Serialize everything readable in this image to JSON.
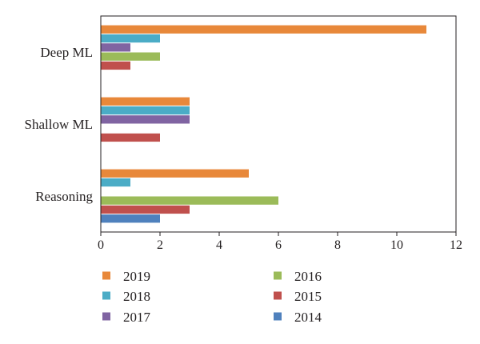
{
  "chart_data": {
    "type": "bar",
    "orientation": "horizontal",
    "categories": [
      "Deep ML",
      "Shallow ML",
      "Reasoning"
    ],
    "series": [
      {
        "name": "2019",
        "color": "#e8883a",
        "values": [
          11,
          3,
          5
        ]
      },
      {
        "name": "2018",
        "color": "#4bacc6",
        "values": [
          2,
          3,
          1
        ]
      },
      {
        "name": "2017",
        "color": "#8064a2",
        "values": [
          1,
          3,
          0
        ]
      },
      {
        "name": "2016",
        "color": "#9bbb59",
        "values": [
          2,
          0,
          6
        ]
      },
      {
        "name": "2015",
        "color": "#c0504d",
        "values": [
          1,
          2,
          3
        ]
      },
      {
        "name": "2014",
        "color": "#4f81bd",
        "values": [
          0,
          0,
          2
        ]
      }
    ],
    "xlim": [
      0,
      12
    ],
    "xticks": [
      "0",
      "2",
      "4",
      "6",
      "8",
      "10",
      "12"
    ],
    "grid": false,
    "legend_position": "bottom"
  }
}
